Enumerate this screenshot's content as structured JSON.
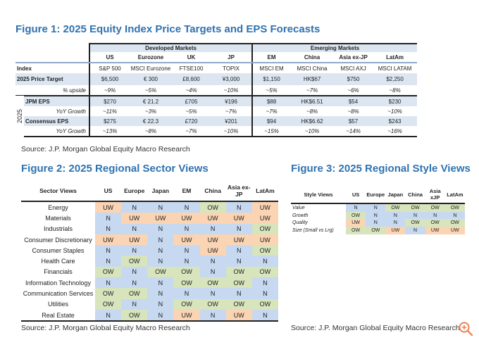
{
  "fig1": {
    "title": "Figure 1: 2025 Equity Index Price Targets and EPS Forecasts",
    "groups": [
      "Developed Markets",
      "Emerging Markets"
    ],
    "columns": [
      "US",
      "Eurozone",
      "UK",
      "JP",
      "EM",
      "China",
      "Asia ex-JP",
      "LatAm"
    ],
    "year_label": "2025",
    "rows": [
      {
        "label": "Index",
        "values": [
          "S&P 500",
          "MSCI Eurozone",
          "FTSE100",
          "TOPIX",
          "MSCI EM",
          "MSCI China",
          "MSCI AXJ",
          "MSCI LATAM"
        ]
      },
      {
        "label": "2025 Price Target",
        "values": [
          "$6,500",
          "€ 300",
          "£8,600",
          "¥3,000",
          "$1,150",
          "HK$67",
          "$750",
          "$2,250"
        ]
      },
      {
        "label": "% upside",
        "values": [
          "~9%",
          "~5%",
          "~4%",
          "~10%",
          "~5%",
          "~7%",
          "~6%",
          "~8%"
        ]
      },
      {
        "label": "JPM EPS",
        "values": [
          "$270",
          "€ 21.2",
          "£705",
          "¥196",
          "$88",
          "HK$6.51",
          "$54",
          "$230"
        ]
      },
      {
        "label": "YoY Growth",
        "values": [
          "~11%",
          "~3%",
          "~5%",
          "~7%",
          "~7%",
          "~8%",
          "~8%",
          "~10%"
        ]
      },
      {
        "label": "Consensus EPS",
        "values": [
          "$275",
          "€ 22.3",
          "£720",
          "¥201",
          "$94",
          "HK$6.62",
          "$57",
          "$243"
        ]
      },
      {
        "label": "YoY Growth",
        "values": [
          "~13%",
          "~8%",
          "~7%",
          "~10%",
          "~15%",
          "~10%",
          "~14%",
          "~16%"
        ]
      }
    ],
    "source": "Source: J.P. Morgan Global Equity Macro Research"
  },
  "fig2": {
    "title": "Figure 2: 2025 Regional Sector Views",
    "columns": [
      "Sector Views",
      "US",
      "Europe",
      "Japan",
      "EM",
      "China",
      "Asia ex-JP",
      "LatAm"
    ],
    "rows": [
      {
        "label": "Energy",
        "values": [
          "UW",
          "N",
          "N",
          "N",
          "OW",
          "N",
          "UW"
        ]
      },
      {
        "label": "Materials",
        "values": [
          "N",
          "UW",
          "UW",
          "UW",
          "UW",
          "UW",
          "UW"
        ]
      },
      {
        "label": "Industrials",
        "values": [
          "N",
          "N",
          "N",
          "N",
          "N",
          "N",
          "OW"
        ]
      },
      {
        "label": "Consumer Discretionary",
        "values": [
          "UW",
          "UW",
          "N",
          "UW",
          "UW",
          "UW",
          "UW"
        ]
      },
      {
        "label": "Consumer Staples",
        "values": [
          "N",
          "N",
          "N",
          "N",
          "UW",
          "N",
          "OW"
        ]
      },
      {
        "label": "Health Care",
        "values": [
          "N",
          "OW",
          "N",
          "N",
          "N",
          "N",
          "N"
        ]
      },
      {
        "label": "Financials",
        "values": [
          "OW",
          "N",
          "OW",
          "OW",
          "N",
          "OW",
          "OW"
        ]
      },
      {
        "label": "Information Technology",
        "values": [
          "N",
          "N",
          "N",
          "OW",
          "OW",
          "OW",
          "N"
        ]
      },
      {
        "label": "Communication Services",
        "values": [
          "OW",
          "OW",
          "N",
          "N",
          "N",
          "N",
          "N"
        ]
      },
      {
        "label": "Utilities",
        "values": [
          "OW",
          "N",
          "N",
          "OW",
          "OW",
          "OW",
          "OW"
        ]
      },
      {
        "label": "Real Estate",
        "values": [
          "N",
          "OW",
          "N",
          "UW",
          "N",
          "UW",
          "N"
        ]
      }
    ],
    "source": "Source: J.P. Morgan Global Equity Macro Research"
  },
  "fig3": {
    "title": "Figure 3: 2025 Regional Style Views",
    "columns": [
      "Style Views",
      "US",
      "Europe",
      "Japan",
      "China",
      "Asia xJP",
      "LatAm"
    ],
    "rows": [
      {
        "label": "Value",
        "values": [
          "N",
          "N",
          "OW",
          "OW",
          "OW",
          "OW"
        ]
      },
      {
        "label": "Growth",
        "values": [
          "OW",
          "N",
          "N",
          "N",
          "N",
          "N"
        ]
      },
      {
        "label": "Quality",
        "values": [
          "UW",
          "N",
          "N",
          "OW",
          "OW",
          "OW"
        ]
      },
      {
        "label": "Size (Small vs Lrg)",
        "values": [
          "OW",
          "OW",
          "UW",
          "N",
          "UW",
          "UW"
        ]
      }
    ],
    "source": "Source: J.P. Morgan Global Equity Macro Research"
  },
  "colors": {
    "title": "#2f72b0",
    "N": "#c6d9f0",
    "UW": "#fbd4b4",
    "OW": "#d7e4bc",
    "icon": "#f08a5d"
  },
  "icons": {
    "corner": "zoom-in-icon"
  }
}
